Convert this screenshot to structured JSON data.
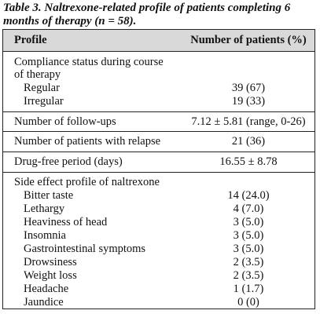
{
  "caption": {
    "line1": "Table 3. Naltrexone-related profile of patients completing 6",
    "line2": "months of therapy (n = 58)."
  },
  "table": {
    "header": {
      "profile": "Profile",
      "count": "Number of patients (%)"
    },
    "compliance": {
      "title_line1": "Compliance status during course",
      "title_line2": "of therapy",
      "rows": [
        {
          "label": "Regular",
          "value": "39 (67)"
        },
        {
          "label": "Irregular",
          "value": "19 (33)"
        }
      ]
    },
    "followups": {
      "label": "Number of follow-ups",
      "value": "7.12 ± 5.81 (range, 0-26)"
    },
    "relapse": {
      "label": "Number of patients with relapse",
      "value": "21 (36)"
    },
    "drugfree": {
      "label": "Drug-free period (days)",
      "value": "16.55 ± 8.78"
    },
    "side_effects": {
      "title": "Side effect profile of naltrexone",
      "rows": [
        {
          "label": "Bitter taste",
          "value": "14 (24.0)"
        },
        {
          "label": "Lethargy",
          "value": "4 (7.0)"
        },
        {
          "label": "Heaviness of head",
          "value": "3 (5.0)"
        },
        {
          "label": "Insomnia",
          "value": "3 (5.0)"
        },
        {
          "label": "Gastrointestinal symptoms",
          "value": "3 (5.0)"
        },
        {
          "label": "Drowsiness",
          "value": "2 (3.5)"
        },
        {
          "label": "Weight loss",
          "value": "2 (3.5)"
        },
        {
          "label": "Headache",
          "value": "1 (1.7)"
        },
        {
          "label": "Jaundice",
          "value": "0 (0)"
        }
      ]
    }
  }
}
